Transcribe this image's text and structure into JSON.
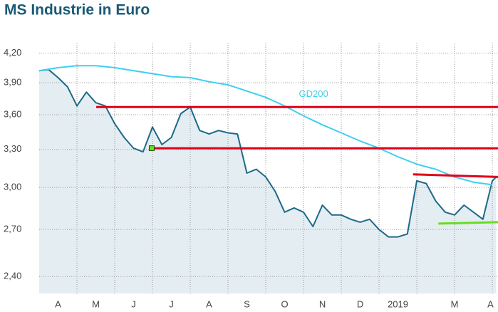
{
  "chart_data": {
    "type": "line",
    "title": "MS Industrie in Euro",
    "log_scale": true,
    "grid": true,
    "fill_color": "#e4edf2",
    "xlim": [
      0,
      12.15
    ],
    "xgrid": [
      1,
      2,
      3,
      4,
      5,
      6,
      7,
      8,
      9,
      10,
      11,
      12
    ],
    "xticks": [
      {
        "value": 0.5,
        "label": "A"
      },
      {
        "value": 1.5,
        "label": "M"
      },
      {
        "value": 2.5,
        "label": "J"
      },
      {
        "value": 3.5,
        "label": "J"
      },
      {
        "value": 4.5,
        "label": "A"
      },
      {
        "value": 5.5,
        "label": "S"
      },
      {
        "value": 6.5,
        "label": "O"
      },
      {
        "value": 7.5,
        "label": "N"
      },
      {
        "value": 8.5,
        "label": "D"
      },
      {
        "value": 9.5,
        "label": "2019"
      },
      {
        "value": 11.0,
        "label": "M"
      },
      {
        "value": 11.95,
        "label": "A"
      }
    ],
    "ylim": [
      2.3,
      4.35
    ],
    "yticks": [
      {
        "value": 2.4,
        "label": "2,40"
      },
      {
        "value": 2.7,
        "label": "2,70"
      },
      {
        "value": 3.0,
        "label": "3,00"
      },
      {
        "value": 3.3,
        "label": "3,30"
      },
      {
        "value": 3.6,
        "label": "3,60"
      },
      {
        "value": 3.9,
        "label": "3,90"
      },
      {
        "value": 4.2,
        "label": "4,20"
      }
    ],
    "series": [
      {
        "color": "#1d6a88",
        "x": [
          0,
          0.25,
          0.5,
          0.75,
          1.0,
          1.25,
          1.5,
          1.75,
          2.0,
          2.25,
          2.5,
          2.75,
          3.0,
          3.25,
          3.5,
          3.75,
          4.0,
          4.25,
          4.5,
          4.75,
          5.0,
          5.25,
          5.5,
          5.75,
          6.0,
          6.25,
          6.5,
          6.75,
          7.0,
          7.25,
          7.5,
          7.75,
          8.0,
          8.25,
          8.5,
          8.75,
          9.0,
          9.25,
          9.5,
          9.75,
          10.0,
          10.25,
          10.5,
          10.75,
          11.0,
          11.25,
          11.5,
          11.75,
          12.0,
          12.1
        ],
        "values": [
          4.02,
          4.03,
          3.95,
          3.86,
          3.68,
          3.81,
          3.71,
          3.68,
          3.52,
          3.4,
          3.31,
          3.28,
          3.49,
          3.34,
          3.4,
          3.61,
          3.67,
          3.46,
          3.43,
          3.46,
          3.44,
          3.43,
          3.11,
          3.14,
          3.08,
          2.97,
          2.82,
          2.85,
          2.82,
          2.72,
          2.87,
          2.8,
          2.8,
          2.77,
          2.75,
          2.77,
          2.7,
          2.65,
          2.65,
          2.67,
          3.05,
          3.03,
          2.9,
          2.82,
          2.8,
          2.87,
          2.82,
          2.77,
          3.05,
          3.08
        ]
      },
      {
        "name": "GD200",
        "color": "#3dd0f0",
        "x": [
          0,
          0.5,
          1.0,
          1.5,
          2.0,
          2.5,
          3.0,
          3.5,
          4.0,
          4.5,
          5.0,
          5.5,
          6.0,
          6.5,
          7.0,
          7.5,
          8.0,
          8.5,
          9.0,
          9.5,
          10.0,
          10.5,
          11.0,
          11.5,
          12.0
        ],
        "values": [
          4.02,
          4.05,
          4.07,
          4.07,
          4.05,
          4.02,
          3.99,
          3.96,
          3.95,
          3.91,
          3.88,
          3.82,
          3.76,
          3.68,
          3.59,
          3.51,
          3.44,
          3.37,
          3.31,
          3.24,
          3.18,
          3.14,
          3.08,
          3.04,
          3.02
        ]
      }
    ],
    "lines": [
      {
        "color": "#e0001a",
        "x": [
          1.51,
          12.15
        ],
        "y": [
          3.67,
          3.67
        ]
      },
      {
        "color": "#e0001a",
        "x": [
          2.98,
          12.15
        ],
        "y": [
          3.31,
          3.31
        ]
      },
      {
        "color": "#e0001a",
        "x": [
          9.9,
          12.15
        ],
        "y": [
          3.1,
          3.08
        ]
      },
      {
        "color": "#66dd22",
        "x": [
          10.57,
          12.15
        ],
        "y": [
          2.74,
          2.75
        ]
      }
    ],
    "markers": [
      {
        "color": "#66dd22",
        "x": 2.98,
        "y": 3.31
      }
    ]
  }
}
